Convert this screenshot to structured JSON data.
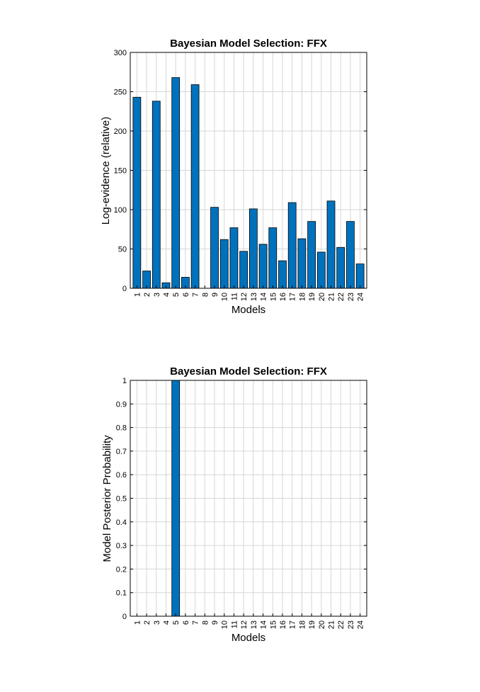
{
  "colors": {
    "bar": "#0072BD",
    "grid": "#d6d6d6",
    "axis": "#000000",
    "background": "#ffffff"
  },
  "chart_data": [
    {
      "type": "bar",
      "title": "Bayesian Model Selection: FFX",
      "xlabel": "Models",
      "ylabel": "Log-evidence (relative)",
      "categories": [
        "1",
        "2",
        "3",
        "4",
        "5",
        "6",
        "7",
        "8",
        "9",
        "10",
        "11",
        "12",
        "13",
        "14",
        "15",
        "16",
        "17",
        "18",
        "19",
        "20",
        "21",
        "22",
        "23",
        "24"
      ],
      "values": [
        243,
        22,
        238,
        7,
        268,
        14,
        259,
        0,
        103,
        62,
        77,
        47,
        101,
        56,
        77,
        35,
        109,
        63,
        85,
        46,
        111,
        52,
        85,
        31
      ],
      "ylim": [
        0,
        300
      ],
      "yticks": [
        0,
        50,
        100,
        150,
        200,
        250,
        300
      ],
      "grid": true,
      "legend": "none"
    },
    {
      "type": "bar",
      "title": "Bayesian Model Selection: FFX",
      "xlabel": "Models",
      "ylabel": "Model Posterior Probability",
      "categories": [
        "1",
        "2",
        "3",
        "4",
        "5",
        "6",
        "7",
        "8",
        "9",
        "10",
        "11",
        "12",
        "13",
        "14",
        "15",
        "16",
        "17",
        "18",
        "19",
        "20",
        "21",
        "22",
        "23",
        "24"
      ],
      "values": [
        0,
        0,
        0,
        0,
        1,
        0,
        0,
        0,
        0,
        0,
        0,
        0,
        0,
        0,
        0,
        0,
        0,
        0,
        0,
        0,
        0,
        0,
        0,
        0
      ],
      "ylim": [
        0,
        1
      ],
      "yticks": [
        0,
        0.1,
        0.2,
        0.3,
        0.4,
        0.5,
        0.6,
        0.7,
        0.8,
        0.9,
        1
      ],
      "grid": true,
      "legend": "none"
    }
  ]
}
